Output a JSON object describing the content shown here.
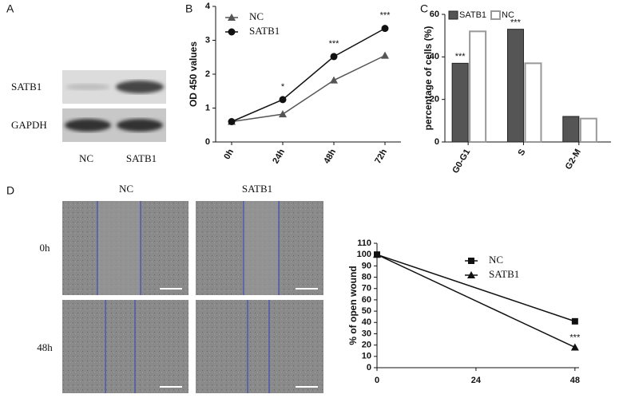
{
  "panels": [
    "A",
    "B",
    "C",
    "D"
  ],
  "blot": {
    "rows": [
      "SATB1",
      "GAPDH"
    ],
    "lanes": [
      "NC",
      "SATB1"
    ]
  },
  "wound": {
    "columns": [
      "NC",
      "SATB1"
    ],
    "rows": [
      "0h",
      "48h"
    ]
  },
  "chart_data": [
    {
      "type": "line",
      "ylabel": "OD 450 values",
      "categories": [
        "0h",
        "24h",
        "48h",
        "72h"
      ],
      "series": [
        {
          "name": "NC",
          "color": "#555555",
          "marker": "triangle",
          "values": [
            0.6,
            0.82,
            1.82,
            2.55
          ]
        },
        {
          "name": "SATB1",
          "color": "#111111",
          "marker": "circle",
          "values": [
            0.6,
            1.25,
            2.52,
            3.35
          ],
          "annotations": [
            null,
            "*",
            "***",
            "***"
          ]
        }
      ],
      "ylim": [
        0,
        4
      ],
      "yticks": [
        0,
        1,
        2,
        3,
        4
      ]
    },
    {
      "type": "bar",
      "ylabel": "percentage of cells (%)",
      "categories": [
        "G0-G1",
        "S",
        "G2-M"
      ],
      "series": [
        {
          "name": "SATB1",
          "color": "#555555",
          "values": [
            37,
            53,
            12
          ],
          "annotations": [
            "***",
            "***",
            null
          ]
        },
        {
          "name": "NC",
          "color": "#ffffff",
          "values": [
            52,
            37,
            11
          ]
        }
      ],
      "ylim": [
        0,
        60
      ],
      "yticks": [
        0,
        20,
        40,
        60
      ]
    },
    {
      "type": "line",
      "ylabel": "% of open wound",
      "x": [
        0,
        48
      ],
      "series": [
        {
          "name": "NC",
          "color": "#111111",
          "marker": "square",
          "values": [
            100,
            41
          ]
        },
        {
          "name": "SATB1",
          "color": "#111111",
          "marker": "triangle",
          "values": [
            100,
            18
          ],
          "annotations": [
            null,
            "***"
          ]
        }
      ],
      "xlim": [
        0,
        49
      ],
      "xticks": [
        0,
        24,
        48
      ],
      "ylim": [
        0,
        110
      ],
      "yticks": [
        0,
        10,
        20,
        30,
        40,
        50,
        60,
        70,
        80,
        90,
        100,
        110
      ]
    }
  ]
}
